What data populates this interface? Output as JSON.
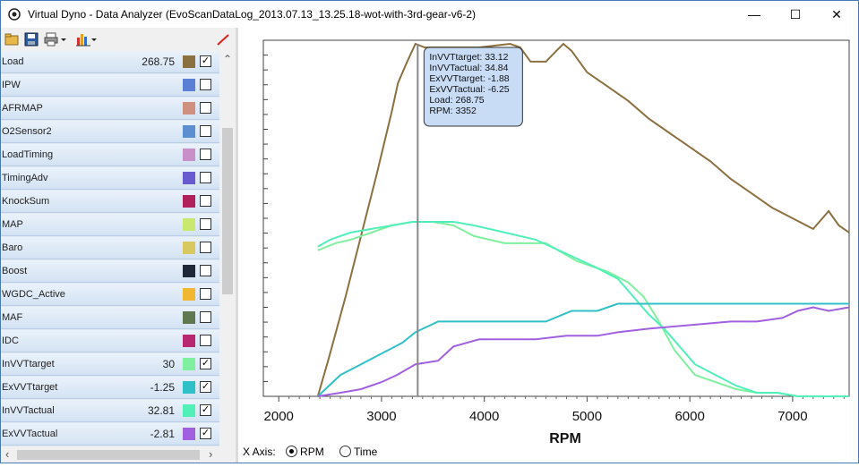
{
  "window": {
    "title": "Virtual Dyno - Data Analyzer (EvoScanDataLog_2013.07.13_13.25.18-wot-with-3rd-gear-v6-2)",
    "minimize_glyph": "—",
    "maximize_glyph": "☐",
    "close_glyph": "✕"
  },
  "toolbar": {
    "icons": [
      "open-folder-icon",
      "save-icon",
      "print-icon",
      "chart-options-icon",
      "clear-line-icon"
    ]
  },
  "channels": [
    {
      "name": "Load",
      "value": "268.75",
      "color": "#8b7040",
      "checked": true
    },
    {
      "name": "IPW",
      "value": "",
      "color": "#5b7fd4",
      "checked": false
    },
    {
      "name": "AFRMAP",
      "value": "",
      "color": "#d09080",
      "checked": false
    },
    {
      "name": "O2Sensor2",
      "value": "",
      "color": "#5b8fd0",
      "checked": false
    },
    {
      "name": "LoadTiming",
      "value": "",
      "color": "#c890c8",
      "checked": false
    },
    {
      "name": "TimingAdv",
      "value": "",
      "color": "#6a5ad0",
      "checked": false
    },
    {
      "name": "KnockSum",
      "value": "",
      "color": "#b0205a",
      "checked": false
    },
    {
      "name": "MAP",
      "value": "",
      "color": "#c8e870",
      "checked": false
    },
    {
      "name": "Baro",
      "value": "",
      "color": "#d8c860",
      "checked": false
    },
    {
      "name": "Boost",
      "value": "",
      "color": "#1e2838",
      "checked": false
    },
    {
      "name": "WGDC_Active",
      "value": "",
      "color": "#f0b830",
      "checked": false
    },
    {
      "name": "MAF",
      "value": "",
      "color": "#607850",
      "checked": false
    },
    {
      "name": "IDC",
      "value": "",
      "color": "#b82870",
      "checked": false
    },
    {
      "name": "InVVTtarget",
      "value": "30",
      "color": "#80f0a0",
      "checked": true
    },
    {
      "name": "ExVVTtarget",
      "value": "-1.25",
      "color": "#30c0c8",
      "checked": true
    },
    {
      "name": "InVVTactual",
      "value": "32.81",
      "color": "#50f0b8",
      "checked": true
    },
    {
      "name": "ExVVTactual",
      "value": "-2.81",
      "color": "#a060e0",
      "checked": true
    }
  ],
  "checkmark": "✓",
  "scroll": {
    "up": "⌃",
    "down": "⌄",
    "left": "‹",
    "right": "›"
  },
  "tooltip": {
    "lines": [
      "InVVTtarget: 33.12",
      "InVVTactual: 34.84",
      "ExVVTtarget: -1.88",
      "ExVVTactual: -6.25",
      "Load: 268.75",
      "RPM: 3352"
    ]
  },
  "x_axis_control": {
    "label": "X Axis:",
    "options": [
      "RPM",
      "Time"
    ],
    "selected": "RPM"
  },
  "chart_data": {
    "type": "line",
    "xlabel": "RPM",
    "xlim": [
      1850,
      7550
    ],
    "xticks": [
      2000,
      3000,
      4000,
      5000,
      6000,
      7000
    ],
    "ylim": [
      0,
      100
    ],
    "cursor_x": 3352,
    "series": [
      {
        "name": "Load",
        "color": "#8b7040",
        "x": [
          2380,
          2480,
          2650,
          2800,
          2950,
          3100,
          3160,
          3250,
          3330,
          3420,
          3500,
          3650,
          3800,
          3950,
          4100,
          4250,
          4350,
          4450,
          4600,
          4700,
          4770,
          4850,
          5000,
          5200,
          5400,
          5600,
          5800,
          6000,
          6200,
          6400,
          6600,
          6800,
          7000,
          7200,
          7350,
          7450,
          7550
        ],
        "y": [
          0,
          10,
          28,
          45,
          62,
          80,
          88,
          94,
          99,
          98,
          98,
          98,
          98,
          98,
          98.5,
          99,
          98,
          94,
          94,
          97,
          99,
          97,
          91,
          87,
          83,
          78,
          74,
          70,
          66,
          61,
          57,
          53,
          50,
          47,
          52,
          48,
          46
        ]
      },
      {
        "name": "InVVTtarget",
        "color": "#80f0a0",
        "x": [
          2380,
          2550,
          2700,
          2900,
          3100,
          3300,
          3500,
          3700,
          3900,
          4200,
          4600,
          4900,
          5200,
          5400,
          5550,
          5700,
          5850,
          6050,
          6250,
          6450,
          6650,
          6850,
          7050,
          7250,
          7400,
          7550
        ],
        "y": [
          41,
          43,
          44,
          46,
          48,
          49,
          49,
          48,
          45,
          43,
          43,
          38,
          35,
          32,
          28,
          21,
          13,
          6,
          4,
          2,
          1,
          1,
          0,
          0,
          0,
          0
        ]
      },
      {
        "name": "InVVTactual",
        "color": "#50f0b8",
        "x": [
          2380,
          2500,
          2700,
          2900,
          3100,
          3300,
          3500,
          3700,
          3900,
          4200,
          4500,
          4800,
          5100,
          5300,
          5450,
          5600,
          5750,
          5900,
          6050,
          6250,
          6450,
          6650,
          6850,
          7050,
          7250,
          7400,
          7550
        ],
        "y": [
          42,
          44,
          46,
          47,
          48,
          49,
          49,
          49,
          48,
          46,
          44,
          40,
          36,
          33,
          28,
          23,
          19,
          14,
          9,
          6,
          3,
          1,
          1,
          0,
          0,
          0,
          0
        ]
      },
      {
        "name": "ExVVTtarget",
        "color": "#30c0c8",
        "x": [
          2380,
          2600,
          2800,
          3000,
          3200,
          3330,
          3550,
          3800,
          4300,
          4600,
          4850,
          5100,
          5300,
          5600,
          6000,
          6500,
          7000,
          7300,
          7550
        ],
        "y": [
          0,
          6,
          9,
          12,
          15,
          18,
          21,
          21,
          21,
          21,
          24,
          24,
          26,
          26,
          26,
          26,
          26,
          26,
          26
        ]
      },
      {
        "name": "ExVVTactual",
        "color": "#a060e0",
        "x": [
          2380,
          2600,
          2800,
          3000,
          3150,
          3330,
          3550,
          3700,
          3950,
          4200,
          4500,
          4800,
          5100,
          5300,
          5600,
          6000,
          6400,
          6650,
          6900,
          7050,
          7200,
          7350,
          7550
        ],
        "y": [
          0,
          1,
          2,
          4,
          6,
          9,
          10,
          14,
          16,
          16,
          16,
          17,
          17,
          18,
          19,
          20,
          21,
          21,
          22,
          24,
          25,
          24,
          25
        ]
      }
    ]
  }
}
